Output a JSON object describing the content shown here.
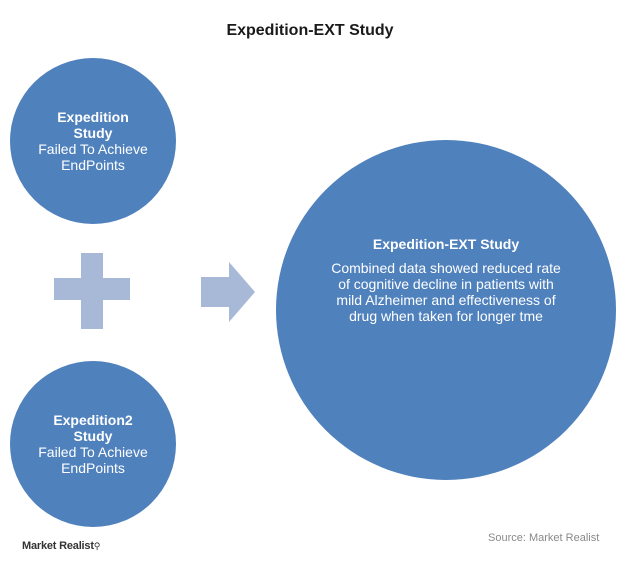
{
  "title": "Expedition-EXT  Study",
  "circles": [
    {
      "heading": "Expedition Study",
      "text": "Failed To Achieve EndPoints"
    },
    {
      "heading": "Expedition2 Study",
      "text": "Failed To Achieve EndPoints"
    },
    {
      "heading": "Expedition-EXT Study",
      "text": "Combined data showed reduced rate of cognitive decline in patients with mild Alzheimer and effectiveness of drug when taken for longer tme"
    }
  ],
  "colors": {
    "circle": "#4f81bd",
    "connector": "#a7b9d6"
  },
  "source": "Source: Market Realist",
  "logo": "Market Realist"
}
